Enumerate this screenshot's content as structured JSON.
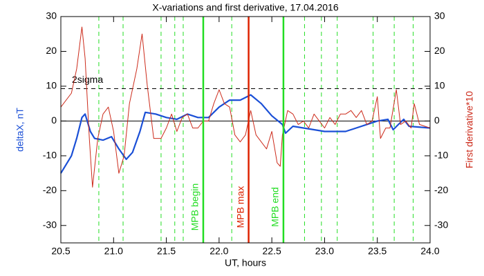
{
  "chart_data": {
    "type": "line",
    "title": "X-variations and first derivative, 17.04.2016",
    "x_label": "UT, hours",
    "y_label": "deltaX, nT",
    "y2_label": "First derivative*10",
    "xlim": [
      20.5,
      24.0
    ],
    "xticks": [
      20.5,
      {
        "value": 21,
        "label": "21.0"
      },
      21.5,
      {
        "value": 22,
        "label": "22.0"
      },
      22.5,
      {
        "value": 23,
        "label": "23.0"
      },
      23.5,
      {
        "value": 24,
        "label": "24.0"
      }
    ],
    "ylim": [
      -35,
      30
    ],
    "yticks": [
      -30,
      -20,
      -10,
      0,
      10,
      20,
      30
    ],
    "y2lim": [
      -35,
      30
    ],
    "y2ticks": [
      -30,
      -20,
      -10,
      0,
      10,
      20,
      30
    ],
    "zero_line": 0,
    "threshold": {
      "value": 9.3,
      "label": "2sigma"
    },
    "dashed_lines": {
      "color": "#22dd22",
      "x": [
        20.86,
        21.09,
        21.45,
        21.58,
        21.66,
        22.12,
        22.81,
        22.97,
        23.12,
        23.46,
        23.66,
        23.84
      ]
    },
    "markers": [
      {
        "x": 21.85,
        "label": "MPB begin",
        "color": "#22dd22"
      },
      {
        "x": 22.28,
        "label": "MPB max",
        "color": "#dd2200"
      },
      {
        "x": 22.61,
        "label": "MPB end",
        "color": "#22dd22"
      }
    ],
    "series": [
      {
        "name": "deltaX, nT",
        "color": "#1a4fd6",
        "axis": "y",
        "x": [
          20.5,
          20.6,
          20.65,
          20.7,
          20.73,
          20.78,
          20.82,
          20.9,
          20.98,
          21.05,
          21.12,
          21.18,
          21.25,
          21.3,
          21.4,
          21.5,
          21.6,
          21.7,
          21.8,
          21.9,
          22.0,
          22.1,
          22.2,
          22.3,
          22.4,
          22.5,
          22.6,
          22.63,
          22.7,
          22.8,
          22.9,
          23.0,
          23.2,
          23.3,
          23.4,
          23.5,
          23.6,
          23.65,
          23.7,
          23.75,
          23.8,
          24.0
        ],
        "values": [
          -15,
          -10,
          -5,
          1,
          2,
          -3,
          -5,
          -5.5,
          -4.5,
          -8,
          -11,
          -9,
          -3,
          2.5,
          2,
          1,
          0.5,
          2,
          1,
          1,
          4,
          6,
          6,
          7.5,
          5,
          1.5,
          -1,
          -3.5,
          -1.5,
          -2,
          -2.5,
          -3,
          -3,
          -2,
          -1,
          0,
          0.5,
          -2.5,
          -1,
          0.5,
          -1.5,
          -2
        ]
      },
      {
        "name": "First derivative*10",
        "color": "#cc2a1a",
        "axis": "y2",
        "x": [
          20.5,
          20.6,
          20.65,
          20.7,
          20.73,
          20.77,
          20.8,
          20.85,
          20.9,
          20.95,
          21.0,
          21.05,
          21.1,
          21.15,
          21.22,
          21.27,
          21.32,
          21.38,
          21.45,
          21.5,
          21.55,
          21.6,
          21.65,
          21.7,
          21.75,
          21.8,
          21.85,
          21.9,
          21.95,
          22.0,
          22.05,
          22.1,
          22.15,
          22.2,
          22.25,
          22.3,
          22.35,
          22.4,
          22.45,
          22.5,
          22.55,
          22.58,
          22.6,
          22.65,
          22.7,
          22.75,
          22.8,
          22.85,
          22.9,
          22.95,
          23.0,
          23.05,
          23.1,
          23.15,
          23.2,
          23.25,
          23.3,
          23.35,
          23.4,
          23.45,
          23.5,
          23.53,
          23.58,
          23.62,
          23.68,
          23.72,
          23.77,
          23.82,
          23.85,
          23.9,
          24.0
        ],
        "values": [
          4,
          8,
          15,
          27,
          18,
          -5,
          -19,
          -5,
          2,
          4,
          -3,
          -15,
          -10,
          5,
          15,
          25,
          10,
          -5,
          -5,
          -2,
          2,
          -3,
          1,
          2,
          -2,
          -2,
          0,
          0,
          5,
          9,
          5,
          4,
          -4,
          -6,
          -4,
          3,
          -4,
          -6,
          -8,
          -3,
          -12,
          -13,
          -4,
          3,
          2,
          -1,
          0,
          -2,
          2,
          0,
          -2,
          1,
          -1,
          2,
          2,
          3,
          1,
          3,
          -1,
          0,
          7,
          -5,
          -2,
          -2,
          9,
          -1,
          0,
          -2,
          5,
          -1,
          -2
        ]
      }
    ]
  }
}
